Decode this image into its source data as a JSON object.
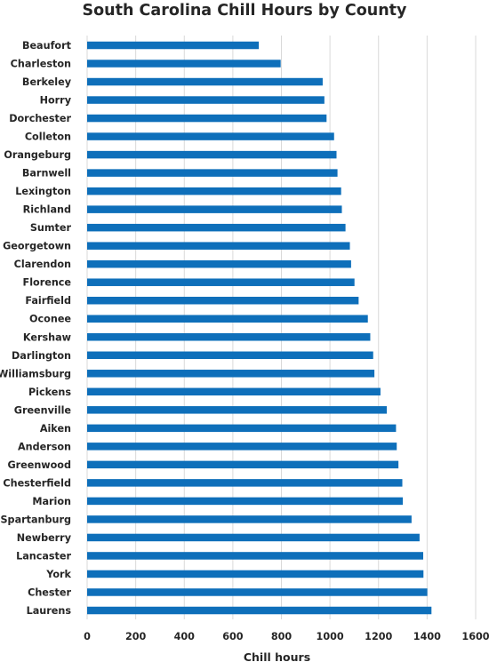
{
  "chart_data": {
    "type": "bar",
    "orientation": "horizontal",
    "title": "South Carolina Chill Hours by County",
    "xlabel": "Chill hours",
    "ylabel": "",
    "xlim": [
      0,
      1600
    ],
    "xticks": [
      "0",
      "200",
      "400",
      "600",
      "800",
      "1000",
      "1200",
      "1400",
      "1600"
    ],
    "grid": true,
    "legend": "none",
    "bar_color": "#0e6fba",
    "categories": [
      "Beaufort",
      "Charleston",
      "Berkeley",
      "Horry",
      "Dorchester",
      "Colleton",
      "Orangeburg",
      "Barnwell",
      "Lexington",
      "Richland",
      "Sumter",
      "Georgetown",
      "Clarendon",
      "Florence",
      "Fairfield",
      "Oconee",
      "Kershaw",
      "Darlington",
      "Williamsburg",
      "Pickens",
      "Greenville",
      "Aiken",
      "Anderson",
      "Greenwood",
      "Chesterfield",
      "Marion",
      "Spartanburg",
      "Newberry",
      "Lancaster",
      "York",
      "Chester",
      "Laurens"
    ],
    "values": [
      707,
      797,
      970,
      977,
      986,
      1017,
      1027,
      1031,
      1046,
      1049,
      1064,
      1082,
      1087,
      1101,
      1118,
      1156,
      1166,
      1178,
      1183,
      1208,
      1234,
      1272,
      1275,
      1282,
      1298,
      1300,
      1336,
      1369,
      1384,
      1385,
      1401,
      1418
    ]
  }
}
